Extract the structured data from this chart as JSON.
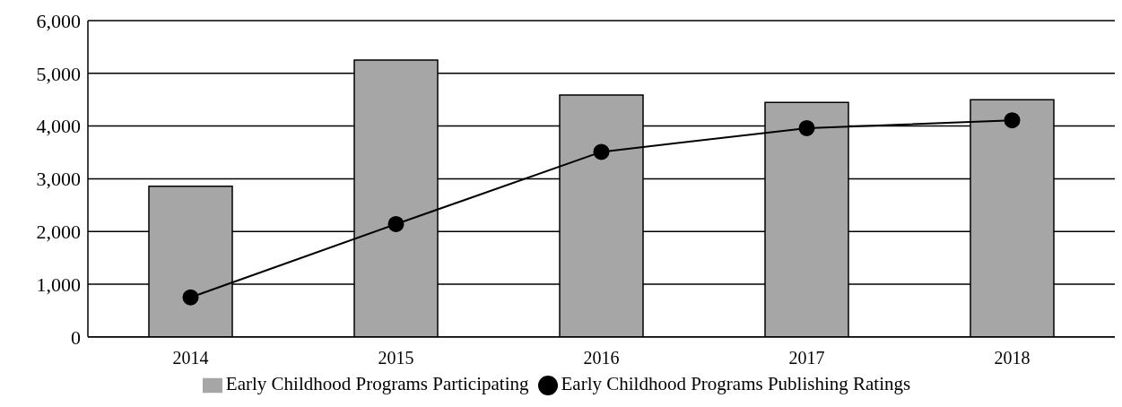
{
  "chart_data": {
    "type": "bar",
    "categories": [
      "2014",
      "2015",
      "2016",
      "2017",
      "2018"
    ],
    "series": [
      {
        "name": "Early Childhood Programs Participating",
        "color": "#a6a6a6",
        "values": [
          2860,
          5250,
          4590,
          4450,
          4500
        ]
      },
      {
        "name": "Early Childhood Programs Publishing Ratings",
        "type": "line",
        "color": "#000000",
        "values": [
          750,
          2140,
          3510,
          3960,
          4110
        ]
      }
    ],
    "ylim": [
      0,
      6000
    ],
    "yticks": [
      {
        "value": 0,
        "label": "0"
      },
      {
        "value": 1000,
        "label": "1,000"
      },
      {
        "value": 2000,
        "label": "2,000"
      },
      {
        "value": 3000,
        "label": "3,000"
      },
      {
        "value": 4000,
        "label": "4,000"
      },
      {
        "value": 5000,
        "label": "5,000"
      },
      {
        "value": 6000,
        "label": "6,000"
      }
    ],
    "grid": "y",
    "legend": "bottom",
    "marker": "circle",
    "line_style": "solid"
  }
}
